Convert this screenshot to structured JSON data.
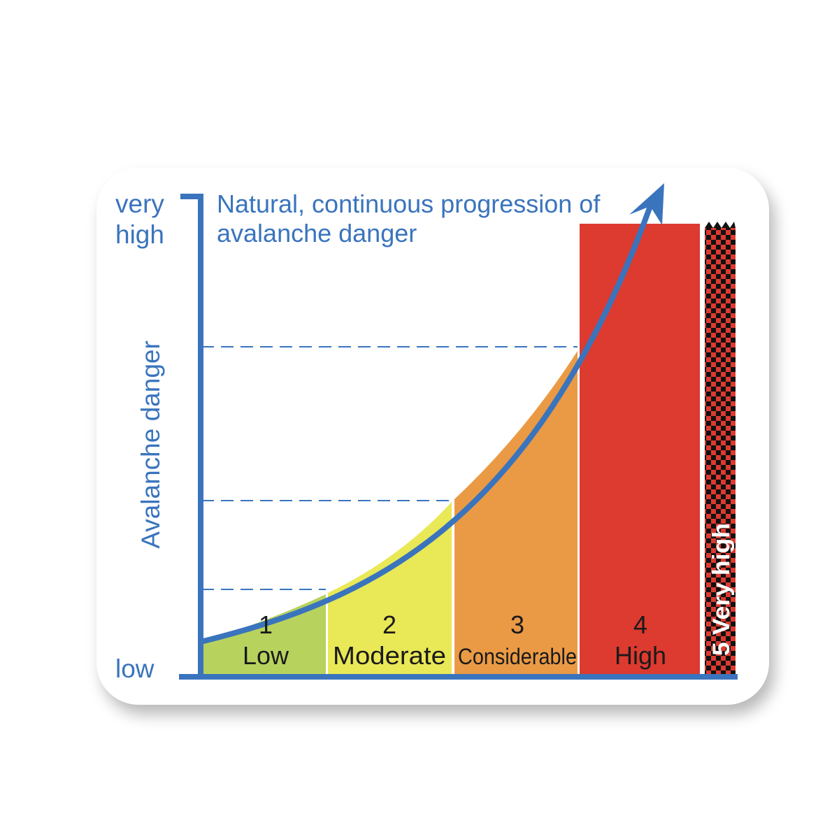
{
  "axis": {
    "top_label_line1": "very",
    "top_label_line2": "high",
    "bottom_label": "low",
    "y_title": "Avalanche danger"
  },
  "curve_caption": {
    "line1": "Natural, continuous progression of",
    "line2": "avalanche danger"
  },
  "levels": [
    {
      "number": "1",
      "name": "Low",
      "color": "#b8d25e"
    },
    {
      "number": "2",
      "name": "Moderate",
      "color": "#e9e857"
    },
    {
      "number": "3",
      "name": "Considerable",
      "color": "#ea9a45"
    },
    {
      "number": "4",
      "name": "High",
      "color": "#dd3a30"
    },
    {
      "number": "5",
      "name": "Very high",
      "label": "5 Very high",
      "color": "#dd3a30",
      "pattern": "checkerboard red/black"
    }
  ],
  "colors": {
    "axis": "#3a74bd",
    "curve": "#3a74bd"
  }
}
